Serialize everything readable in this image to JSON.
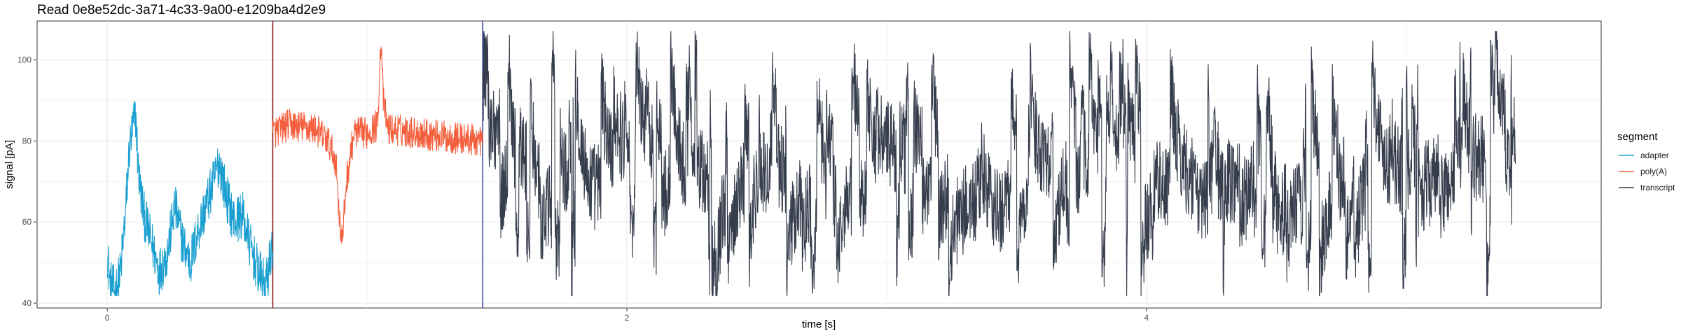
{
  "chart_data": {
    "type": "line",
    "title": "Read 0e8e52dc-3a71-4c33-9a00-e1209ba4d2e9",
    "xlabel": "time [s]",
    "ylabel": "signal [pA]",
    "xlim": [
      -0.27,
      5.75
    ],
    "ylim": [
      38.8,
      109.6
    ],
    "x_ticks": [
      0,
      2,
      4
    ],
    "y_ticks": [
      40,
      60,
      80,
      100
    ],
    "grid": true,
    "legend": {
      "title": "segment",
      "position": "right"
    },
    "boundaries": [
      {
        "x": 0.637,
        "color": "#8b1a1a"
      },
      {
        "x": 1.445,
        "color": "#3a4cb0"
      }
    ],
    "series": [
      {
        "name": "adapter",
        "color": "#1a9fd0",
        "x_range": [
          0.0,
          0.637
        ],
        "points": [
          [
            0.0,
            53
          ],
          [
            0.01,
            45
          ],
          [
            0.03,
            43
          ],
          [
            0.05,
            47
          ],
          [
            0.07,
            62
          ],
          [
            0.085,
            78
          ],
          [
            0.1,
            84
          ],
          [
            0.11,
            86
          ],
          [
            0.12,
            72
          ],
          [
            0.14,
            62
          ],
          [
            0.17,
            55
          ],
          [
            0.2,
            48
          ],
          [
            0.23,
            52
          ],
          [
            0.26,
            64
          ],
          [
            0.29,
            55
          ],
          [
            0.32,
            50
          ],
          [
            0.35,
            58
          ],
          [
            0.38,
            64
          ],
          [
            0.41,
            70
          ],
          [
            0.43,
            75
          ],
          [
            0.46,
            66
          ],
          [
            0.49,
            60
          ],
          [
            0.52,
            62
          ],
          [
            0.55,
            54
          ],
          [
            0.58,
            48
          ],
          [
            0.61,
            44
          ],
          [
            0.637,
            55
          ]
        ]
      },
      {
        "name": "poly(A)",
        "color": "#f4603e",
        "x_range": [
          0.637,
          1.445
        ],
        "points": [
          [
            0.637,
            82
          ],
          [
            0.7,
            84
          ],
          [
            0.8,
            83
          ],
          [
            0.85,
            80
          ],
          [
            0.88,
            75
          ],
          [
            0.895,
            60
          ],
          [
            0.905,
            55
          ],
          [
            0.92,
            70
          ],
          [
            0.95,
            82
          ],
          [
            1.0,
            82
          ],
          [
            1.04,
            84
          ],
          [
            1.05,
            100
          ],
          [
            1.055,
            105
          ],
          [
            1.062,
            90
          ],
          [
            1.08,
            83
          ],
          [
            1.2,
            82
          ],
          [
            1.3,
            81
          ],
          [
            1.445,
            80
          ]
        ]
      },
      {
        "name": "transcript",
        "color": "#363d4c",
        "x_range": [
          1.445,
          5.42
        ],
        "points": [
          [
            1.445,
            92
          ],
          [
            1.6,
            70
          ],
          [
            1.8,
            62
          ],
          [
            2.0,
            78
          ],
          [
            2.2,
            68
          ],
          [
            2.4,
            74
          ],
          [
            2.6,
            70
          ],
          [
            2.8,
            66
          ],
          [
            3.0,
            78
          ],
          [
            3.2,
            70
          ],
          [
            3.4,
            62
          ],
          [
            3.6,
            76
          ],
          [
            3.8,
            70
          ],
          [
            4.0,
            74
          ],
          [
            4.2,
            68
          ],
          [
            4.4,
            72
          ],
          [
            4.6,
            66
          ],
          [
            4.8,
            74
          ],
          [
            5.0,
            70
          ],
          [
            5.2,
            72
          ],
          [
            5.42,
            80
          ]
        ]
      }
    ]
  }
}
